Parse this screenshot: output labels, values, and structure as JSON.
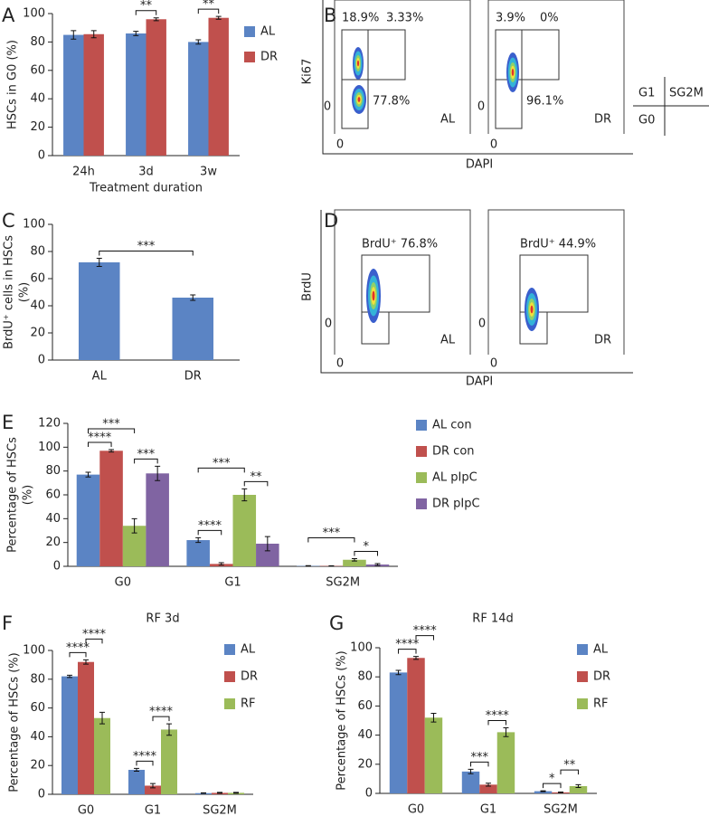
{
  "chart_data": [
    {
      "type": "bar",
      "panel": "A",
      "ylabel": [
        "HSCs in G0 (%)"
      ],
      "xlabel": "Treatment duration",
      "categories": [
        "24h",
        "3d",
        "3w"
      ],
      "series": [
        {
          "name": "AL",
          "color": "#5b84c4",
          "values": [
            85,
            86,
            80
          ],
          "errors": [
            3,
            1.5,
            1.5
          ]
        },
        {
          "name": "DR",
          "color": "#c0504d",
          "values": [
            85.5,
            96,
            97
          ],
          "errors": [
            2.5,
            1,
            1
          ]
        }
      ],
      "ylim": [
        0,
        100
      ],
      "yticks": [
        0,
        20,
        40,
        60,
        80,
        100
      ],
      "annotations": [
        {
          "text": "**",
          "category": "3d",
          "between": [
            "AL",
            "DR"
          ]
        },
        {
          "text": "**",
          "category": "3w",
          "between": [
            "AL",
            "DR"
          ]
        }
      ]
    },
    {
      "type": "flow",
      "panel": "B",
      "ylabel": "Ki67",
      "xlabel": "DAPI",
      "plots": [
        {
          "label": "AL",
          "gates": [
            "18.9%",
            "3.33%",
            "77.8%"
          ],
          "xtick": "0",
          "ytick": "0"
        },
        {
          "label": "DR",
          "gates": [
            "3.9%",
            "0%",
            "96.1%"
          ],
          "xtick": "0",
          "ytick": "0"
        }
      ],
      "key": [
        "G1",
        "SG2M",
        "G0"
      ]
    },
    {
      "type": "bar",
      "panel": "C",
      "ylabel": [
        "BrdU⁺ cells in HSCs",
        "(%)"
      ],
      "categories": [
        "AL",
        "DR"
      ],
      "values": [
        72,
        46
      ],
      "errors": [
        3,
        2
      ],
      "color": "#5b84c4",
      "ylim": [
        0,
        100
      ],
      "yticks": [
        0,
        20,
        40,
        60,
        80,
        100
      ],
      "annotations": [
        {
          "text": "***",
          "between": [
            "AL",
            "DR"
          ]
        }
      ]
    },
    {
      "type": "flow",
      "panel": "D",
      "ylabel": "BrdU",
      "xlabel": "DAPI",
      "plots": [
        {
          "label": "AL",
          "gates": [
            "BrdU⁺ 76.8%"
          ],
          "xtick": "0",
          "ytick": "0"
        },
        {
          "label": "DR",
          "gates": [
            "BrdU⁺ 44.9%"
          ],
          "xtick": "0",
          "ytick": "0"
        }
      ]
    },
    {
      "type": "bar",
      "panel": "E",
      "ylabel": [
        "Percentage of HSCs",
        "(%)"
      ],
      "categories": [
        "G0",
        "G1",
        "SG2M"
      ],
      "series": [
        {
          "name": "AL con",
          "color": "#5b84c4",
          "values": [
            77,
            22,
            0.3
          ],
          "errors": [
            2,
            2,
            0.3
          ]
        },
        {
          "name": "DR con",
          "color": "#c0504d",
          "values": [
            97,
            2,
            0.3
          ],
          "errors": [
            1,
            1,
            0.2
          ]
        },
        {
          "name": "AL pIpC",
          "color": "#9bbb59",
          "values": [
            34,
            60,
            5.5
          ],
          "errors": [
            6,
            5,
            1
          ]
        },
        {
          "name": "DR pIpC",
          "color": "#8064a2",
          "values": [
            78,
            19,
            1.5
          ],
          "errors": [
            6,
            6,
            0.8
          ]
        }
      ],
      "ylim": [
        0,
        120
      ],
      "yticks": [
        0,
        20,
        40,
        60,
        80,
        100,
        120
      ],
      "annotations": [
        {
          "text": "****",
          "category": "G0",
          "between": [
            "AL con",
            "DR con"
          ]
        },
        {
          "text": "***",
          "category": "G0",
          "between": [
            "AL pIpC",
            "DR pIpC"
          ]
        },
        {
          "text": "***",
          "category": "G0",
          "between": [
            "AL con",
            "AL pIpC"
          ]
        },
        {
          "text": "****",
          "category": "G1",
          "between": [
            "AL con",
            "DR con"
          ]
        },
        {
          "text": "**",
          "category": "G1",
          "between": [
            "AL pIpC",
            "DR pIpC"
          ]
        },
        {
          "text": "***",
          "category": "G1",
          "between": [
            "AL con",
            "AL pIpC"
          ]
        },
        {
          "text": "*",
          "category": "SG2M",
          "between": [
            "AL pIpC",
            "DR pIpC"
          ]
        },
        {
          "text": "***",
          "category": "SG2M",
          "between": [
            "AL con",
            "AL pIpC"
          ]
        }
      ]
    },
    {
      "type": "bar",
      "panel": "F",
      "title": "RF 3d",
      "ylabel": [
        "Percentage of HSCs (%)"
      ],
      "categories": [
        "G0",
        "G1",
        "SG2M"
      ],
      "series": [
        {
          "name": "AL",
          "color": "#5b84c4",
          "values": [
            82,
            17,
            0.8
          ],
          "errors": [
            0.8,
            1,
            0.2
          ]
        },
        {
          "name": "DR",
          "color": "#c0504d",
          "values": [
            92,
            6,
            1
          ],
          "errors": [
            1.5,
            1.5,
            0.3
          ]
        },
        {
          "name": "RF",
          "color": "#9bbb59",
          "values": [
            53,
            45,
            1
          ],
          "errors": [
            4,
            4,
            0.3
          ]
        }
      ],
      "ylim": [
        0,
        100
      ],
      "yticks": [
        0,
        20,
        40,
        60,
        80,
        100
      ],
      "annotations": [
        {
          "text": "****",
          "category": "G0",
          "between": [
            "AL",
            "DR"
          ]
        },
        {
          "text": "****",
          "category": "G0",
          "between": [
            "DR",
            "RF"
          ]
        },
        {
          "text": "****",
          "category": "G1",
          "between": [
            "AL",
            "DR"
          ]
        },
        {
          "text": "****",
          "category": "G1",
          "between": [
            "DR",
            "RF"
          ]
        }
      ]
    },
    {
      "type": "bar",
      "panel": "G",
      "title": "RF 14d",
      "ylabel": [
        "Percentage of HSCs (%)"
      ],
      "categories": [
        "G0",
        "G1",
        "SG2M"
      ],
      "series": [
        {
          "name": "AL",
          "color": "#5b84c4",
          "values": [
            83,
            15,
            1.5
          ],
          "errors": [
            1.5,
            1.5,
            0.3
          ]
        },
        {
          "name": "DR",
          "color": "#c0504d",
          "values": [
            93,
            6,
            0.7
          ],
          "errors": [
            1,
            1,
            0.2
          ]
        },
        {
          "name": "RF",
          "color": "#9bbb59",
          "values": [
            52,
            42,
            5
          ],
          "errors": [
            3,
            3,
            1
          ]
        }
      ],
      "ylim": [
        0,
        100
      ],
      "yticks": [
        0,
        20,
        40,
        60,
        80,
        100
      ],
      "annotations": [
        {
          "text": "****",
          "category": "G0",
          "between": [
            "AL",
            "DR"
          ]
        },
        {
          "text": "****",
          "category": "G0",
          "between": [
            "DR",
            "RF"
          ]
        },
        {
          "text": "***",
          "category": "G1",
          "between": [
            "AL",
            "DR"
          ]
        },
        {
          "text": "****",
          "category": "G1",
          "between": [
            "DR",
            "RF"
          ]
        },
        {
          "text": "*",
          "category": "SG2M",
          "between": [
            "AL",
            "DR"
          ]
        },
        {
          "text": "**",
          "category": "SG2M",
          "between": [
            "DR",
            "RF"
          ]
        }
      ]
    }
  ]
}
